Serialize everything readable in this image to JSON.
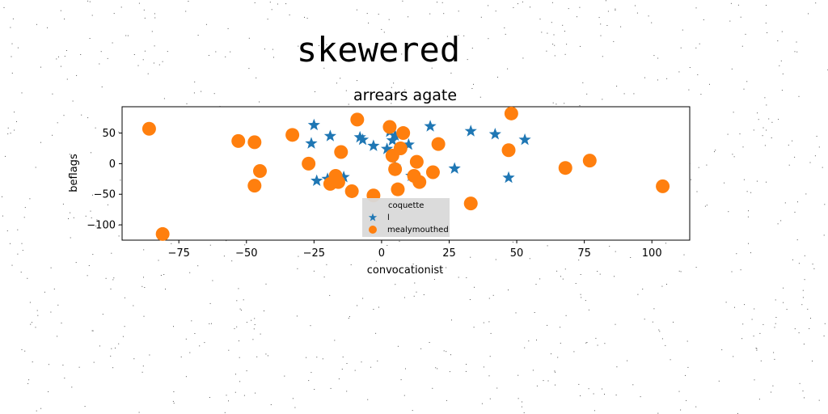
{
  "chart_data": {
    "type": "scatter",
    "suptitle": "skewered",
    "title": "arrears agate",
    "xlabel": "convocationist",
    "ylabel": "beflags",
    "xlim": [
      -96,
      114
    ],
    "ylim": [
      -125,
      93
    ],
    "xticks": [
      -75,
      -50,
      -25,
      0,
      25,
      50,
      75,
      100
    ],
    "yticks": [
      -100,
      -50,
      0,
      50
    ],
    "grid": false,
    "legend": {
      "placement": "lower-center",
      "title": "coquette"
    },
    "series": [
      {
        "name": "l",
        "marker": "star",
        "color": "#1f77b4",
        "points": [
          [
            -25,
            63
          ],
          [
            -26,
            33
          ],
          [
            -19,
            45
          ],
          [
            -8,
            43
          ],
          [
            -7,
            39
          ],
          [
            -3,
            29
          ],
          [
            3,
            52
          ],
          [
            2,
            24
          ],
          [
            5,
            46
          ],
          [
            4,
            38
          ],
          [
            10,
            31
          ],
          [
            18,
            61
          ],
          [
            33,
            53
          ],
          [
            42,
            48
          ],
          [
            53,
            39
          ],
          [
            -24,
            -28
          ],
          [
            -20,
            -25
          ],
          [
            -14,
            -22
          ],
          [
            5,
            -5
          ],
          [
            27,
            -8
          ],
          [
            47,
            -23
          ],
          [
            11,
            -20
          ]
        ]
      },
      {
        "name": "mealymouthed",
        "marker": "circle",
        "color": "#ff7f0e",
        "points": [
          [
            -86,
            57
          ],
          [
            -53,
            37
          ],
          [
            -47,
            35
          ],
          [
            -33,
            47
          ],
          [
            -9,
            72
          ],
          [
            3,
            60
          ],
          [
            8,
            50
          ],
          [
            7,
            25
          ],
          [
            21,
            32
          ],
          [
            48,
            82
          ],
          [
            47,
            22
          ],
          [
            -15,
            19
          ],
          [
            4,
            13
          ],
          [
            -27,
            0
          ],
          [
            -45,
            -12
          ],
          [
            5,
            -9
          ],
          [
            13,
            3
          ],
          [
            12,
            -20
          ],
          [
            14,
            -30
          ],
          [
            19,
            -14
          ],
          [
            -47,
            -36
          ],
          [
            -19,
            -33
          ],
          [
            -16,
            -30
          ],
          [
            -11,
            -45
          ],
          [
            -3,
            -52
          ],
          [
            6,
            -42
          ],
          [
            33,
            -65
          ],
          [
            68,
            -7
          ],
          [
            77,
            5
          ],
          [
            104,
            -37
          ],
          [
            -81,
            -115
          ],
          [
            -17,
            -20
          ]
        ]
      }
    ]
  }
}
